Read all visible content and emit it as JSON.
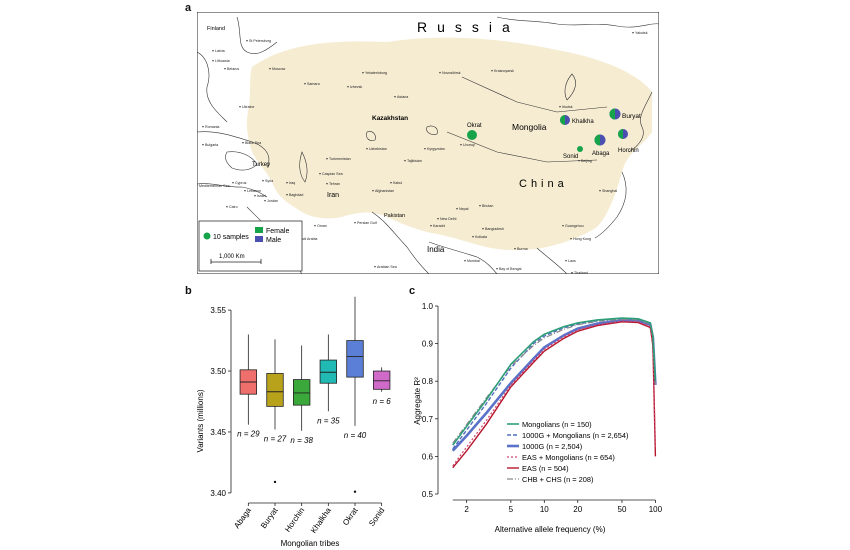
{
  "panels": {
    "a": "a",
    "b": "b",
    "c": "c"
  },
  "map": {
    "country_russia": "Russia",
    "country_mongolia": "Mongolia",
    "country_china": "China",
    "country_kazakhstan": "Kazakhstan",
    "country_iran": "Iran",
    "country_india": "India",
    "country_turkey": "Turkey",
    "country_pakistan": "Pakistan",
    "country_finland": "Finland",
    "labels_small": [
      "St Petersburg",
      "Latvia",
      "Lithuania",
      "Belarus",
      "Moscow",
      "Ukraine",
      "Romania",
      "Bulgaria",
      "Black Sea",
      "Mediterranean Sea",
      "Cyprus",
      "Syria",
      "Iraq",
      "Lebanon",
      "Israel",
      "Jordan",
      "Cairo",
      "Saudi Arabia",
      "Baghdad",
      "Tehran",
      "Caspian Sea",
      "Turkmenistan",
      "Uzbekistan",
      "Kyrgyzstan",
      "Tajikistan",
      "Afghanistan",
      "Kabul",
      "Karachi",
      "New Delhi",
      "Nepal",
      "Bhutan",
      "Bangladesh",
      "Kolkata",
      "Mumbai",
      "Burma",
      "Laos",
      "Thailand",
      "Bay of Bengal",
      "Arabian Sea",
      "Guangzhou",
      "Hong Kong",
      "Shanghai",
      "Beijing",
      "Urumqi",
      "Irkutsk",
      "Yakutsk",
      "Novosibirsk",
      "Krasnoyarsk",
      "Yekaterinburg",
      "Samara",
      "Astana",
      "Izhevsk",
      "Oman",
      "Persian Gulf"
    ],
    "sample_sites": [
      "Khalkha",
      "Buryat",
      "Okrat",
      "Abaga",
      "Horchin",
      "Sonid"
    ],
    "legend": {
      "samples_label": "10 samples",
      "female_label": "Female",
      "male_label": "Male",
      "scale_label": "1,000 Km"
    },
    "colors": {
      "land": "#f6ecd2",
      "female": "#17a34a",
      "male": "#4a4fb0"
    }
  },
  "chart_data": [
    {
      "type": "box",
      "panel": "b",
      "title": "",
      "xlabel": "Mongolian tribes",
      "ylabel": "Variants (millions)",
      "ylim": [
        3.395,
        3.555
      ],
      "yticks": [
        3.4,
        3.45,
        3.5,
        3.55
      ],
      "ytick_labels": [
        "3.40",
        "3.45",
        "3.50",
        "3.55"
      ],
      "categories": [
        "Abaga",
        "Buryat",
        "Horchin",
        "Khalkha",
        "Okrat",
        "Sonid"
      ],
      "boxes": [
        {
          "name": "Abaga",
          "color": "#ef6f6c",
          "whisker_low": 3.456,
          "q1": 3.481,
          "median": 3.491,
          "q3": 3.501,
          "whisker_high": 3.53,
          "outliers": [],
          "n_label": "n = 29"
        },
        {
          "name": "Buryat",
          "color": "#b8a21c",
          "whisker_low": 3.452,
          "q1": 3.471,
          "median": 3.483,
          "q3": 3.498,
          "whisker_high": 3.526,
          "outliers": [
            3.409
          ],
          "n_label": "n = 27"
        },
        {
          "name": "Horchin",
          "color": "#3aa83a",
          "whisker_low": 3.451,
          "q1": 3.472,
          "median": 3.482,
          "q3": 3.493,
          "whisker_high": 3.521,
          "outliers": [],
          "n_label": "n = 38"
        },
        {
          "name": "Khalkha",
          "color": "#21b9b3",
          "whisker_low": 3.467,
          "q1": 3.49,
          "median": 3.499,
          "q3": 3.509,
          "whisker_high": 3.53,
          "outliers": [],
          "n_label": "n = 35"
        },
        {
          "name": "Okrat",
          "color": "#5b7fd6",
          "whisker_low": 3.455,
          "q1": 3.495,
          "median": 3.512,
          "q3": 3.525,
          "whisker_high": 3.561,
          "outliers": [
            3.401
          ],
          "n_label": "n = 40"
        },
        {
          "name": "Sonid",
          "color": "#d06ac9",
          "whisker_low": 3.483,
          "q1": 3.485,
          "median": 3.492,
          "q3": 3.5,
          "whisker_high": 3.503,
          "outliers": [],
          "n_label": "n = 6"
        }
      ]
    },
    {
      "type": "line",
      "panel": "c",
      "title": "",
      "xlabel": "Alternative allele frequency (%)",
      "ylabel": "Aggregate R²",
      "xscale": "log",
      "xlim": [
        1.2,
        110
      ],
      "ylim": [
        0.5,
        1.0
      ],
      "xticks": [
        2,
        5,
        10,
        20,
        50,
        100
      ],
      "xtick_labels": [
        "2",
        "5",
        "10",
        "20",
        "50",
        "100"
      ],
      "yticks": [
        0.5,
        0.6,
        0.7,
        0.8,
        0.9,
        1.0
      ],
      "ytick_labels": [
        "0.5",
        "0.6",
        "0.7",
        "0.8",
        "0.9",
        "1.0"
      ],
      "legend_position": "bottom-right",
      "series": [
        {
          "name": "Mongolians (n = 150)",
          "color": "#2e9e78",
          "dash": "solid",
          "width": 1.6,
          "x": [
            1.5,
            2,
            3,
            5,
            8,
            10,
            15,
            20,
            30,
            50,
            70,
            90,
            95,
            100
          ],
          "y": [
            0.63,
            0.68,
            0.75,
            0.845,
            0.905,
            0.925,
            0.945,
            0.955,
            0.963,
            0.968,
            0.966,
            0.955,
            0.92,
            0.8
          ]
        },
        {
          "name": "1000G + Mongolians (n = 2,654)",
          "color": "#4f6fc0",
          "dash": "4,2",
          "width": 1.4,
          "x": [
            1.5,
            2,
            3,
            5,
            8,
            10,
            15,
            20,
            30,
            50,
            70,
            90,
            95,
            100
          ],
          "y": [
            0.62,
            0.67,
            0.74,
            0.835,
            0.9,
            0.92,
            0.942,
            0.952,
            0.961,
            0.967,
            0.965,
            0.954,
            0.92,
            0.8
          ]
        },
        {
          "name": "1000G (n = 2,504)",
          "color": "#5a72c8",
          "dash": "solid",
          "width": 2.6,
          "x": [
            1.5,
            2,
            3,
            5,
            8,
            10,
            15,
            20,
            30,
            50,
            70,
            90,
            95,
            100
          ],
          "y": [
            0.615,
            0.655,
            0.715,
            0.795,
            0.86,
            0.89,
            0.922,
            0.94,
            0.953,
            0.962,
            0.961,
            0.95,
            0.915,
            0.79
          ]
        },
        {
          "name": "EAS + Mongolians (n = 654)",
          "color": "#d0436a",
          "dash": "2,2",
          "width": 1.2,
          "x": [
            1.5,
            2,
            3,
            5,
            8,
            10,
            15,
            20,
            30,
            50,
            70,
            90,
            95,
            100
          ],
          "y": [
            0.575,
            0.625,
            0.695,
            0.79,
            0.855,
            0.885,
            0.918,
            0.936,
            0.95,
            0.96,
            0.958,
            0.945,
            0.9,
            0.62
          ]
        },
        {
          "name": "EAS (n = 504)",
          "color": "#b5172e",
          "dash": "solid",
          "width": 1.4,
          "x": [
            1.5,
            2,
            3,
            5,
            8,
            10,
            15,
            20,
            30,
            50,
            70,
            90,
            95,
            100
          ],
          "y": [
            0.57,
            0.615,
            0.685,
            0.785,
            0.85,
            0.88,
            0.914,
            0.933,
            0.948,
            0.958,
            0.956,
            0.943,
            0.895,
            0.6
          ]
        },
        {
          "name": "CHB + CHS (n = 208)",
          "color": "#8a8a8a",
          "dash": "6,2,1,2",
          "width": 1.2,
          "x": [
            1.5,
            2,
            3,
            5,
            8,
            10,
            15,
            20,
            30,
            50,
            70,
            90,
            95,
            100
          ],
          "y": [
            0.635,
            0.685,
            0.755,
            0.84,
            0.895,
            0.915,
            0.938,
            0.95,
            0.959,
            0.965,
            0.963,
            0.952,
            0.915,
            0.79
          ]
        }
      ]
    }
  ]
}
